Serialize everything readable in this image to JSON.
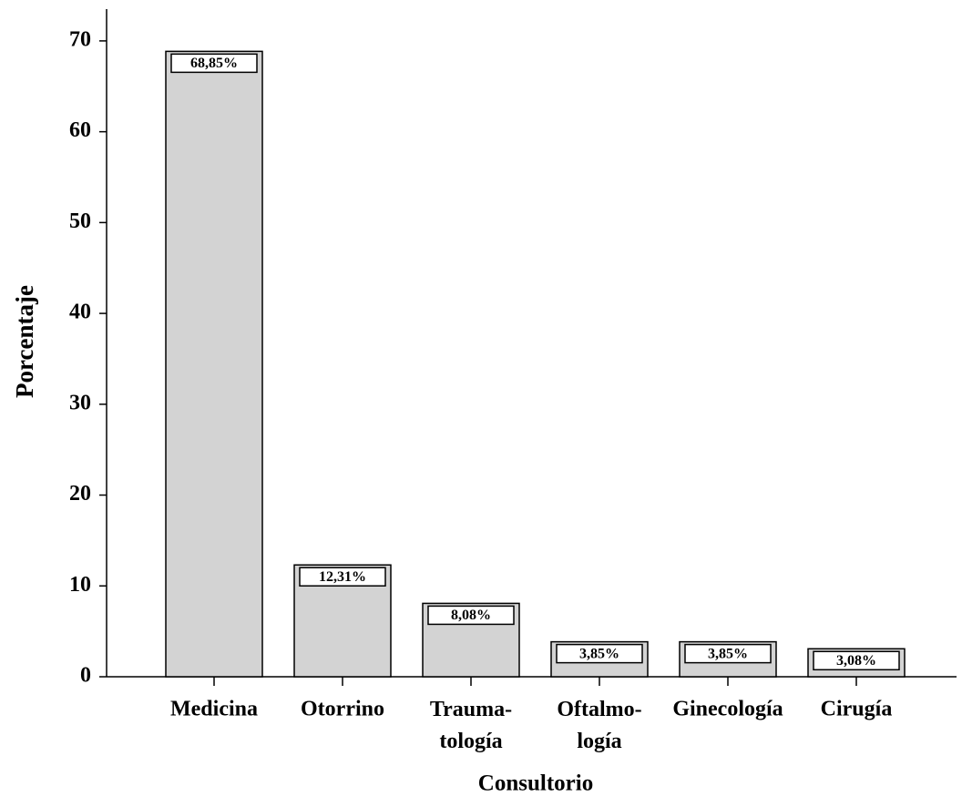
{
  "chart_data": {
    "type": "bar",
    "x_label": "Consultorio",
    "y_label": "Porcentaje",
    "categories": [
      "Medicina",
      "Otorrino",
      "Trauma-\ntología",
      "Oftalmo-\nlogía",
      "Ginecología",
      "Cirugía"
    ],
    "values": [
      68.85,
      12.31,
      8.08,
      3.85,
      3.85,
      3.08
    ],
    "value_labels": [
      "68,85%",
      "12,31%",
      "8,08%",
      "3,85%",
      "3,85%",
      "3,08%"
    ],
    "color": "#d3d3d3",
    "ylim": [
      0,
      73.5
    ],
    "yticks": [
      0,
      10,
      20,
      30,
      40,
      50,
      60,
      70
    ],
    "grid": false
  }
}
